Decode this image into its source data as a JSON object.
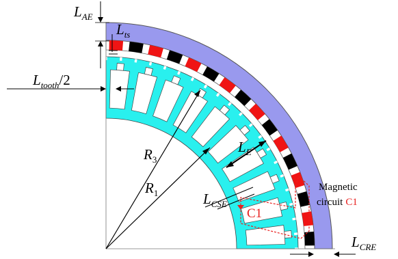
{
  "labels": {
    "L_AE": {
      "main": "L",
      "sub": "AE"
    },
    "L_ts": {
      "main": "L",
      "sub": "ts"
    },
    "L_tooth": {
      "main": "L",
      "sub": "tooth",
      "suffix": "/2"
    },
    "R3": {
      "main": "R",
      "sub": "3"
    },
    "R1": {
      "main": "R",
      "sub": "1"
    },
    "L_E": {
      "main": "L",
      "sub": "E"
    },
    "L_CSE": {
      "main": "L",
      "sub": "CSE"
    },
    "L_CRE": {
      "main": "L",
      "sub": "CRE"
    },
    "circuit_tag": "C1",
    "magnetic_line1": "Magnetic",
    "magnetic_line2": "circuit",
    "magnetic_tag": "C1"
  },
  "colors": {
    "stator_core": "#29f0ee",
    "rotor_ring": "#9999ee",
    "magnet_red": "#f01414",
    "magnet_black": "#000000",
    "flux_path": "#e8201f",
    "outline": "#555555"
  },
  "icons": {
    "flux_path": "dashed-arrow-loop"
  }
}
